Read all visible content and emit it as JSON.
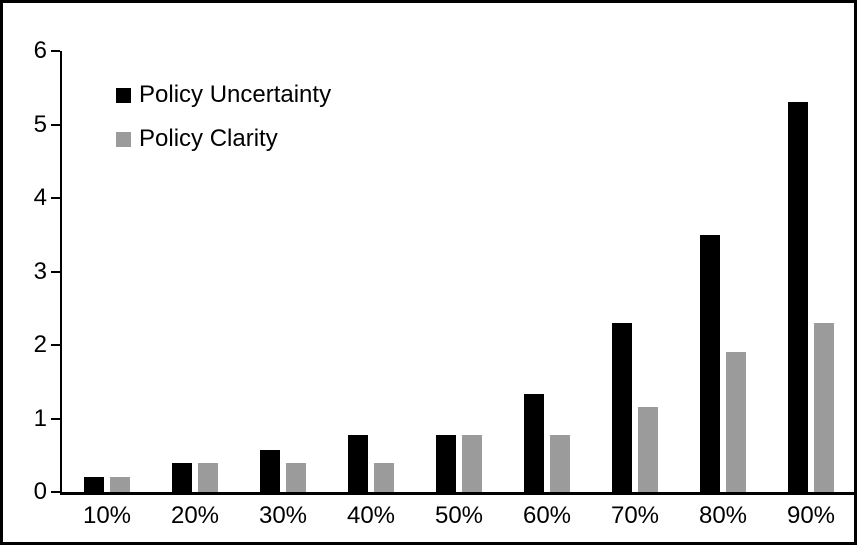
{
  "chart_data": {
    "type": "bar",
    "title": "",
    "xlabel": "",
    "ylabel": "",
    "categories": [
      "10%",
      "20%",
      "30%",
      "40%",
      "50%",
      "60%",
      "70%",
      "80%",
      "90%"
    ],
    "series": [
      {
        "name": "Policy Uncertainty",
        "color": "#000000",
        "values": [
          0.2,
          0.4,
          0.57,
          0.77,
          0.78,
          1.33,
          2.3,
          3.5,
          5.3
        ]
      },
      {
        "name": "Policy Clarity",
        "color": "#9B9B9B",
        "values": [
          0.2,
          0.4,
          0.4,
          0.4,
          0.77,
          0.78,
          1.15,
          1.9,
          2.3
        ]
      }
    ],
    "ylim": [
      0,
      6
    ],
    "yticks": [
      0,
      1,
      2,
      3,
      4,
      5,
      6
    ],
    "grid": false,
    "legend_position": "top-left",
    "axis_color": "#000000",
    "background": "#FFFFFF"
  }
}
